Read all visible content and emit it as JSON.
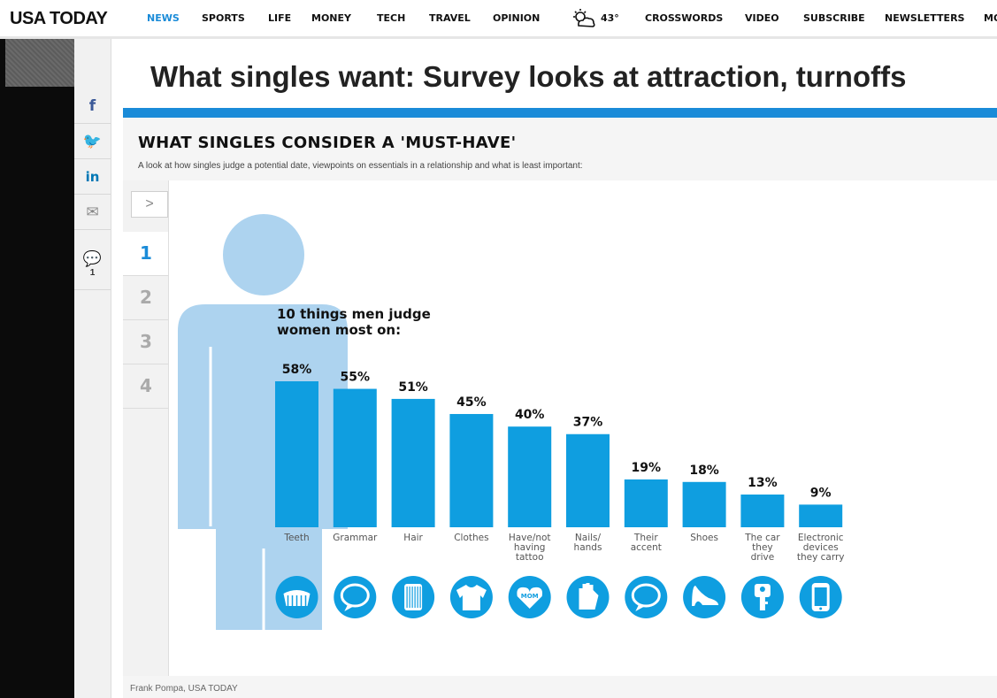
{
  "site": {
    "logo": "USA TODAY",
    "nav": [
      {
        "label": "NEWS",
        "active": true
      },
      {
        "label": "SPORTS"
      },
      {
        "label": "LIFE"
      },
      {
        "label": "MONEY"
      },
      {
        "label": "TECH"
      },
      {
        "label": "TRAVEL"
      },
      {
        "label": "OPINION"
      },
      {
        "label": "43°",
        "icon": "partly-cloudy-icon"
      },
      {
        "label": "CROSSWORDS"
      },
      {
        "label": "VIDEO"
      },
      {
        "label": "SUBSCRIBE"
      },
      {
        "label": "NEWSLETTERS"
      },
      {
        "label": "MO"
      }
    ]
  },
  "share": [
    {
      "icon": "facebook-icon",
      "glyph": "f",
      "color": "#3b5998"
    },
    {
      "icon": "twitter-icon",
      "glyph": "🐦",
      "color": "#1da1f2"
    },
    {
      "icon": "linkedin-icon",
      "glyph": "in",
      "color": "#0077b5"
    },
    {
      "icon": "email-icon",
      "glyph": "✉",
      "color": "#888888"
    },
    {
      "icon": "comment-icon",
      "glyph": "💬",
      "color": "#888888",
      "count": "1"
    }
  ],
  "article": {
    "title": "What singles want: Survey looks at attraction, turnoffs"
  },
  "graphic": {
    "title": "WHAT SINGLES CONSIDER A 'MUST-HAVE'",
    "subtitle": "A look at how singles judge a potential date, viewpoints on essentials in a relationship and what is least important:",
    "credit": "Frank Pompa, USA TODAY",
    "next_label": ">",
    "steps": [
      "1",
      "2",
      "3",
      "4"
    ],
    "active_step": "1",
    "colors": {
      "bar": "#0f9ee0",
      "silhouette": "#add3ef",
      "accent": "#1a8bd8"
    }
  },
  "chart_data": {
    "type": "bar",
    "title": "10 things men judge women most on:",
    "categories": [
      "Teeth",
      "Grammar",
      "Hair",
      "Clothes",
      "Have/not having tattoo",
      "Nails/ hands",
      "Their accent",
      "Shoes",
      "The car they drive",
      "Electronic devices they carry"
    ],
    "values": [
      58,
      55,
      51,
      45,
      40,
      37,
      19,
      18,
      13,
      9
    ],
    "value_labels": [
      "58%",
      "55%",
      "51%",
      "45%",
      "40%",
      "37%",
      "19%",
      "18%",
      "13%",
      "9%"
    ],
    "category_lines": [
      [
        "Teeth"
      ],
      [
        "Grammar"
      ],
      [
        "Hair"
      ],
      [
        "Clothes"
      ],
      [
        "Have/not",
        "having",
        "tattoo"
      ],
      [
        "Nails/",
        "hands"
      ],
      [
        "Their",
        "accent"
      ],
      [
        "Shoes"
      ],
      [
        "The car",
        "they",
        "drive"
      ],
      [
        "Electronic",
        "devices",
        "they carry"
      ]
    ],
    "icons": [
      "teeth-icon",
      "speech-bubble-icon",
      "comb-icon",
      "shirt-icon",
      "mom-tattoo-icon",
      "hand-icon",
      "speech-bubble-icon",
      "high-heel-icon",
      "car-key-icon",
      "phone-icon"
    ],
    "mom_text": "MOM",
    "xlabel": "",
    "ylabel": "",
    "ylim": [
      0,
      58
    ]
  }
}
